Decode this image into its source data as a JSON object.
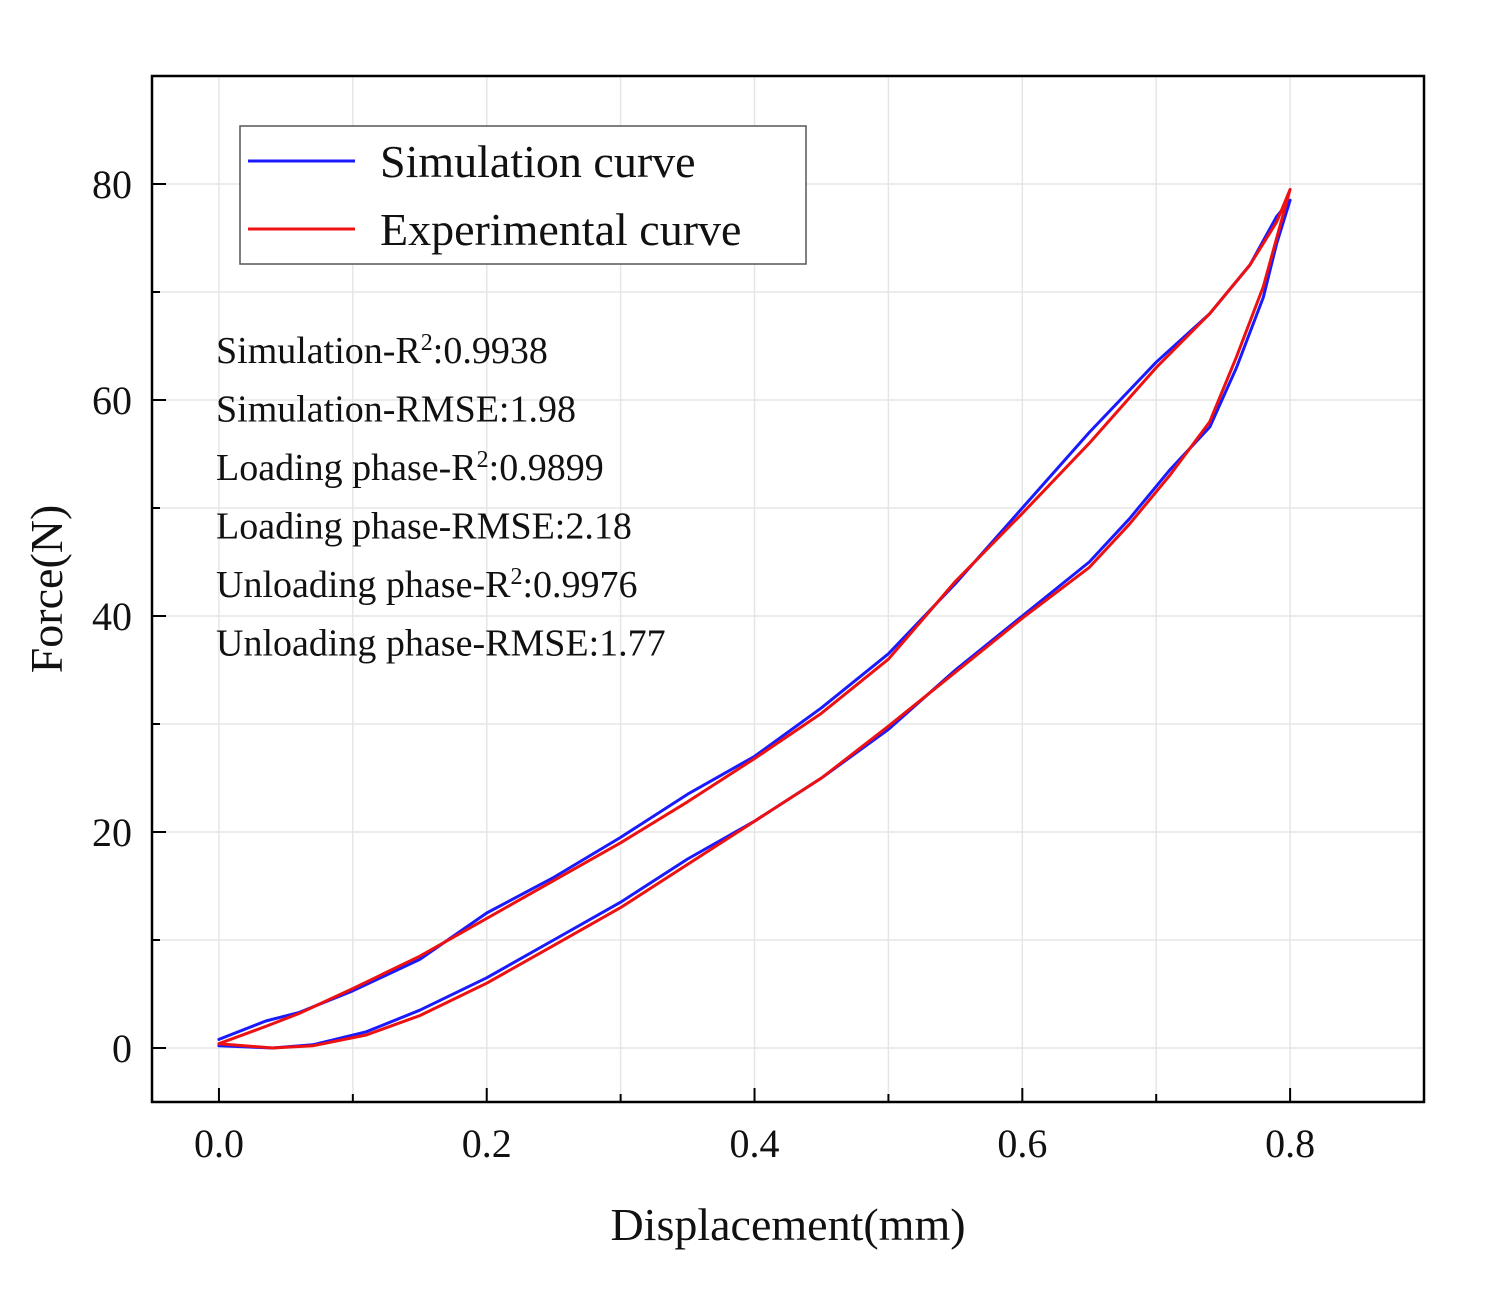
{
  "chart_data": {
    "type": "line",
    "xlabel": "Displacement(mm)",
    "ylabel": "Force(N)",
    "xlim": [
      -0.05,
      0.9
    ],
    "ylim": [
      -5,
      90
    ],
    "xticks": [
      0.0,
      0.2,
      0.4,
      0.6,
      0.8
    ],
    "xtick_labels": [
      "0.0",
      "0.2",
      "0.4",
      "0.6",
      "0.8"
    ],
    "yticks": [
      0,
      20,
      40,
      60,
      80
    ],
    "ytick_labels": [
      "0",
      "20",
      "40",
      "60",
      "80"
    ],
    "grid": true,
    "legend_position": "top-left",
    "series": [
      {
        "name": "Simulation curve",
        "color": "#1a1aff",
        "x": [
          0.0,
          0.035,
          0.06,
          0.1,
          0.15,
          0.2,
          0.25,
          0.3,
          0.35,
          0.4,
          0.45,
          0.5,
          0.55,
          0.6,
          0.65,
          0.7,
          0.74,
          0.77,
          0.79,
          0.8,
          0.79,
          0.78,
          0.76,
          0.74,
          0.71,
          0.68,
          0.65,
          0.6,
          0.55,
          0.5,
          0.45,
          0.4,
          0.35,
          0.3,
          0.25,
          0.2,
          0.15,
          0.11,
          0.07,
          0.04,
          0.0
        ],
        "y": [
          0.8,
          2.5,
          3.3,
          5.3,
          8.2,
          12.5,
          15.8,
          19.5,
          23.5,
          27.0,
          31.5,
          36.5,
          43.0,
          50.0,
          57.0,
          63.5,
          68.0,
          72.5,
          77.0,
          78.5,
          74.5,
          69.5,
          63.0,
          57.5,
          53.5,
          49.0,
          45.0,
          40.0,
          35.0,
          29.5,
          25.0,
          21.0,
          17.5,
          13.5,
          10.0,
          6.5,
          3.5,
          1.5,
          0.3,
          0.0,
          0.2
        ]
      },
      {
        "name": "Experimental curve",
        "color": "#ee1111",
        "x": [
          0.0,
          0.035,
          0.06,
          0.1,
          0.15,
          0.2,
          0.25,
          0.3,
          0.35,
          0.4,
          0.45,
          0.5,
          0.55,
          0.6,
          0.65,
          0.7,
          0.74,
          0.77,
          0.79,
          0.8,
          0.79,
          0.78,
          0.76,
          0.74,
          0.71,
          0.68,
          0.65,
          0.6,
          0.55,
          0.5,
          0.45,
          0.4,
          0.35,
          0.3,
          0.25,
          0.2,
          0.15,
          0.11,
          0.07,
          0.04,
          0.0
        ],
        "y": [
          0.4,
          2.0,
          3.2,
          5.5,
          8.5,
          12.0,
          15.5,
          19.0,
          22.8,
          26.8,
          31.0,
          36.0,
          43.2,
          49.5,
          56.0,
          63.0,
          68.0,
          72.5,
          76.5,
          79.5,
          75.0,
          70.5,
          64.0,
          58.0,
          53.0,
          48.5,
          44.5,
          39.8,
          34.8,
          29.8,
          25.0,
          21.0,
          17.0,
          13.0,
          9.5,
          6.0,
          3.0,
          1.2,
          0.2,
          0.0,
          0.4
        ]
      }
    ],
    "annotations": [
      {
        "prefix": "Simulation-R",
        "sup": "2",
        "suffix": ":0.9938"
      },
      {
        "prefix": "Simulation-RMSE:1.98",
        "sup": "",
        "suffix": ""
      },
      {
        "prefix": "Loading phase-R",
        "sup": "2",
        "suffix": ":0.9899"
      },
      {
        "prefix": "Loading phase-RMSE:2.18",
        "sup": "",
        "suffix": ""
      },
      {
        "prefix": "Unloading phase-R",
        "sup": "2",
        "suffix": ":0.9976"
      },
      {
        "prefix": "Unloading phase-RMSE:1.77",
        "sup": "",
        "suffix": ""
      }
    ]
  }
}
